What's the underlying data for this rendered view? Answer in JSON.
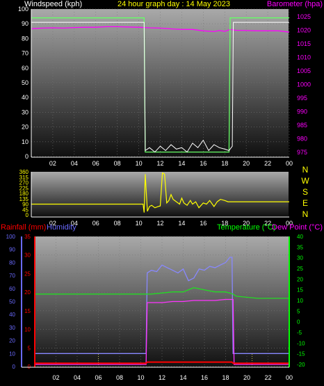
{
  "colors": {
    "background": "#000000",
    "title": "#ffff00",
    "white": "#ffffff",
    "magenta": "#ff00ff",
    "green": "#00ff00",
    "blue": "#6a6aff",
    "red": "#ff0000",
    "yellow": "#ffff00",
    "wind_avg": "#66ff66",
    "gust": "#ffffff",
    "hum": "#8888ff",
    "temp": "#22dd22",
    "dew": "#ff33ff",
    "rain": "#ff0000"
  },
  "chart_data": [
    {
      "type": "line",
      "title": "24 hour graph day : 14 May 2023",
      "ylabel": "Windspeed (kph)",
      "ylabel_right": "Barometer (hpa)",
      "x_ticks": [
        "02",
        "04",
        "06",
        "08",
        "10",
        "12",
        "14",
        "16",
        "18",
        "20",
        "22",
        "00"
      ],
      "ylim": [
        0,
        100
      ],
      "y_ticks": [
        0,
        10,
        20,
        30,
        40,
        50,
        60,
        70,
        80,
        90,
        100
      ],
      "ylim_right": [
        975,
        1025
      ],
      "y_ticks_right": [
        975,
        980,
        985,
        990,
        995,
        1000,
        1005,
        1010,
        1015,
        1020,
        1025
      ],
      "grid": true,
      "series": [
        {
          "axis": "right",
          "x": [
            0,
            1,
            2,
            3,
            4,
            5,
            6,
            7,
            8,
            9,
            10,
            11,
            12,
            13,
            14,
            15,
            16,
            17,
            17.5,
            18,
            18.5,
            19,
            20,
            21,
            22,
            23,
            24
          ],
          "values": [
            1020.6,
            1020.8,
            1020.9,
            1020.8,
            1021.0,
            1021.1,
            1021.1,
            1021.3,
            1021.3,
            1021.2,
            1021.1,
            1020.9,
            1020.8,
            1020.5,
            1020.3,
            1020.3,
            1019.8,
            1019.5,
            1019.9,
            1019.6,
            1020.3,
            1020.0,
            1019.9,
            1019.8,
            1019.8,
            1019.8,
            1019.3
          ]
        },
        {
          "axis": "left",
          "x": [
            0,
            10.5,
            10.6,
            18.4,
            18.5,
            18.7,
            18.8,
            24
          ],
          "values": [
            94,
            94,
            3,
            3,
            94,
            94,
            94,
            94
          ]
        },
        {
          "axis": "left",
          "x": [
            0,
            10.5,
            10.6,
            11,
            11.5,
            12,
            12.5,
            13,
            13.5,
            14,
            14.5,
            15,
            15.5,
            16,
            16.5,
            17,
            17.5,
            18,
            18.4,
            18.7,
            18.8,
            19,
            24
          ],
          "values": [
            91,
            91,
            4,
            6,
            3,
            7,
            4,
            8,
            5,
            6,
            3,
            9,
            6,
            11,
            4,
            8,
            6,
            5,
            4,
            7,
            91,
            91,
            91
          ]
        }
      ]
    },
    {
      "type": "line",
      "ylim": [
        0,
        360
      ],
      "y_ticks": [
        0,
        45,
        90,
        135,
        180,
        225,
        270,
        315,
        360
      ],
      "x_ticks": [
        "02",
        "04",
        "06",
        "08",
        "10",
        "12",
        "14",
        "16",
        "18",
        "20",
        "22",
        "00"
      ],
      "right_labels": [
        "N",
        "W",
        "S",
        "E",
        "N"
      ],
      "grid": false,
      "series": [
        {
          "x": [
            0,
            10.4,
            10.5,
            10.6,
            10.8,
            11,
            11.2,
            11.5,
            11.8,
            12,
            12.2,
            12.4,
            12.6,
            12.8,
            13,
            13.2,
            13.5,
            13.8,
            14,
            14.2,
            14.5,
            14.8,
            15,
            15.3,
            15.6,
            16,
            16.3,
            16.6,
            17,
            17.3,
            17.6,
            18,
            18.3,
            18.6,
            19,
            24
          ],
          "values": [
            90,
            90,
            20,
            340,
            30,
            70,
            80,
            60,
            70,
            75,
            350,
            340,
            100,
            120,
            170,
            130,
            110,
            90,
            140,
            100,
            80,
            120,
            90,
            110,
            60,
            100,
            90,
            120,
            70,
            110,
            130,
            120,
            110,
            110,
            110,
            110
          ]
        }
      ]
    },
    {
      "type": "line",
      "ylabel": "Rainfall (mm)",
      "ylabel2": "Humidity",
      "ylabel_right": "Temperature (°C)",
      "ylabel_right2": "Dew Point (°C)",
      "x_ticks": [
        "02",
        "04",
        "06",
        "08",
        "10",
        "12",
        "14",
        "16",
        "18",
        "20",
        "22",
        "00"
      ],
      "ylim": [
        0,
        100
      ],
      "y_ticks": [
        0,
        10,
        20,
        30,
        40,
        50,
        60,
        70,
        80,
        90,
        100
      ],
      "ylim_rain": [
        0,
        35
      ],
      "y_ticks_rain": [
        0,
        5,
        10,
        15,
        20,
        25,
        30,
        35
      ],
      "ylim_right": [
        -20,
        40
      ],
      "y_ticks_right": [
        -20,
        -15,
        -10,
        -5,
        0,
        5,
        10,
        15,
        20,
        25,
        30,
        35,
        40
      ],
      "grid": true,
      "series": [
        {
          "axis": "left",
          "x": [
            0,
            10.5,
            10.6,
            11,
            11.5,
            12,
            12.5,
            13,
            13.5,
            14,
            14.5,
            15,
            15.5,
            16,
            16.5,
            17,
            17.5,
            18,
            18.4,
            18.6,
            18.7,
            24
          ],
          "values": [
            10,
            10,
            72,
            74,
            73,
            78,
            76,
            74,
            72,
            75,
            66,
            68,
            75,
            74,
            77,
            76,
            78,
            80,
            84,
            84,
            10,
            10
          ]
        },
        {
          "axis": "right",
          "x": [
            0,
            10.5,
            11,
            12,
            13,
            14,
            15,
            16,
            17,
            18,
            18.7,
            19,
            20,
            21,
            22,
            23,
            24
          ],
          "values": [
            13,
            13,
            13,
            13.5,
            14,
            14,
            16,
            15,
            14,
            14,
            13,
            12,
            11.5,
            11,
            11,
            11,
            11
          ]
        },
        {
          "axis": "right",
          "x": [
            0,
            10.5,
            10.6,
            12,
            13,
            14,
            15,
            16,
            17,
            18,
            18.5,
            18.7,
            18.8,
            24
          ],
          "values": [
            -20,
            -20,
            9,
            9,
            9.5,
            9.5,
            10,
            10,
            10,
            10.5,
            10.5,
            10.5,
            -20,
            -20
          ]
        },
        {
          "axis": "rain",
          "x": [
            0,
            10.5,
            10.6,
            18.6,
            18.7,
            24
          ],
          "values": [
            0.9,
            0.9,
            1.2,
            1.2,
            0.9,
            0.9
          ]
        }
      ]
    }
  ]
}
